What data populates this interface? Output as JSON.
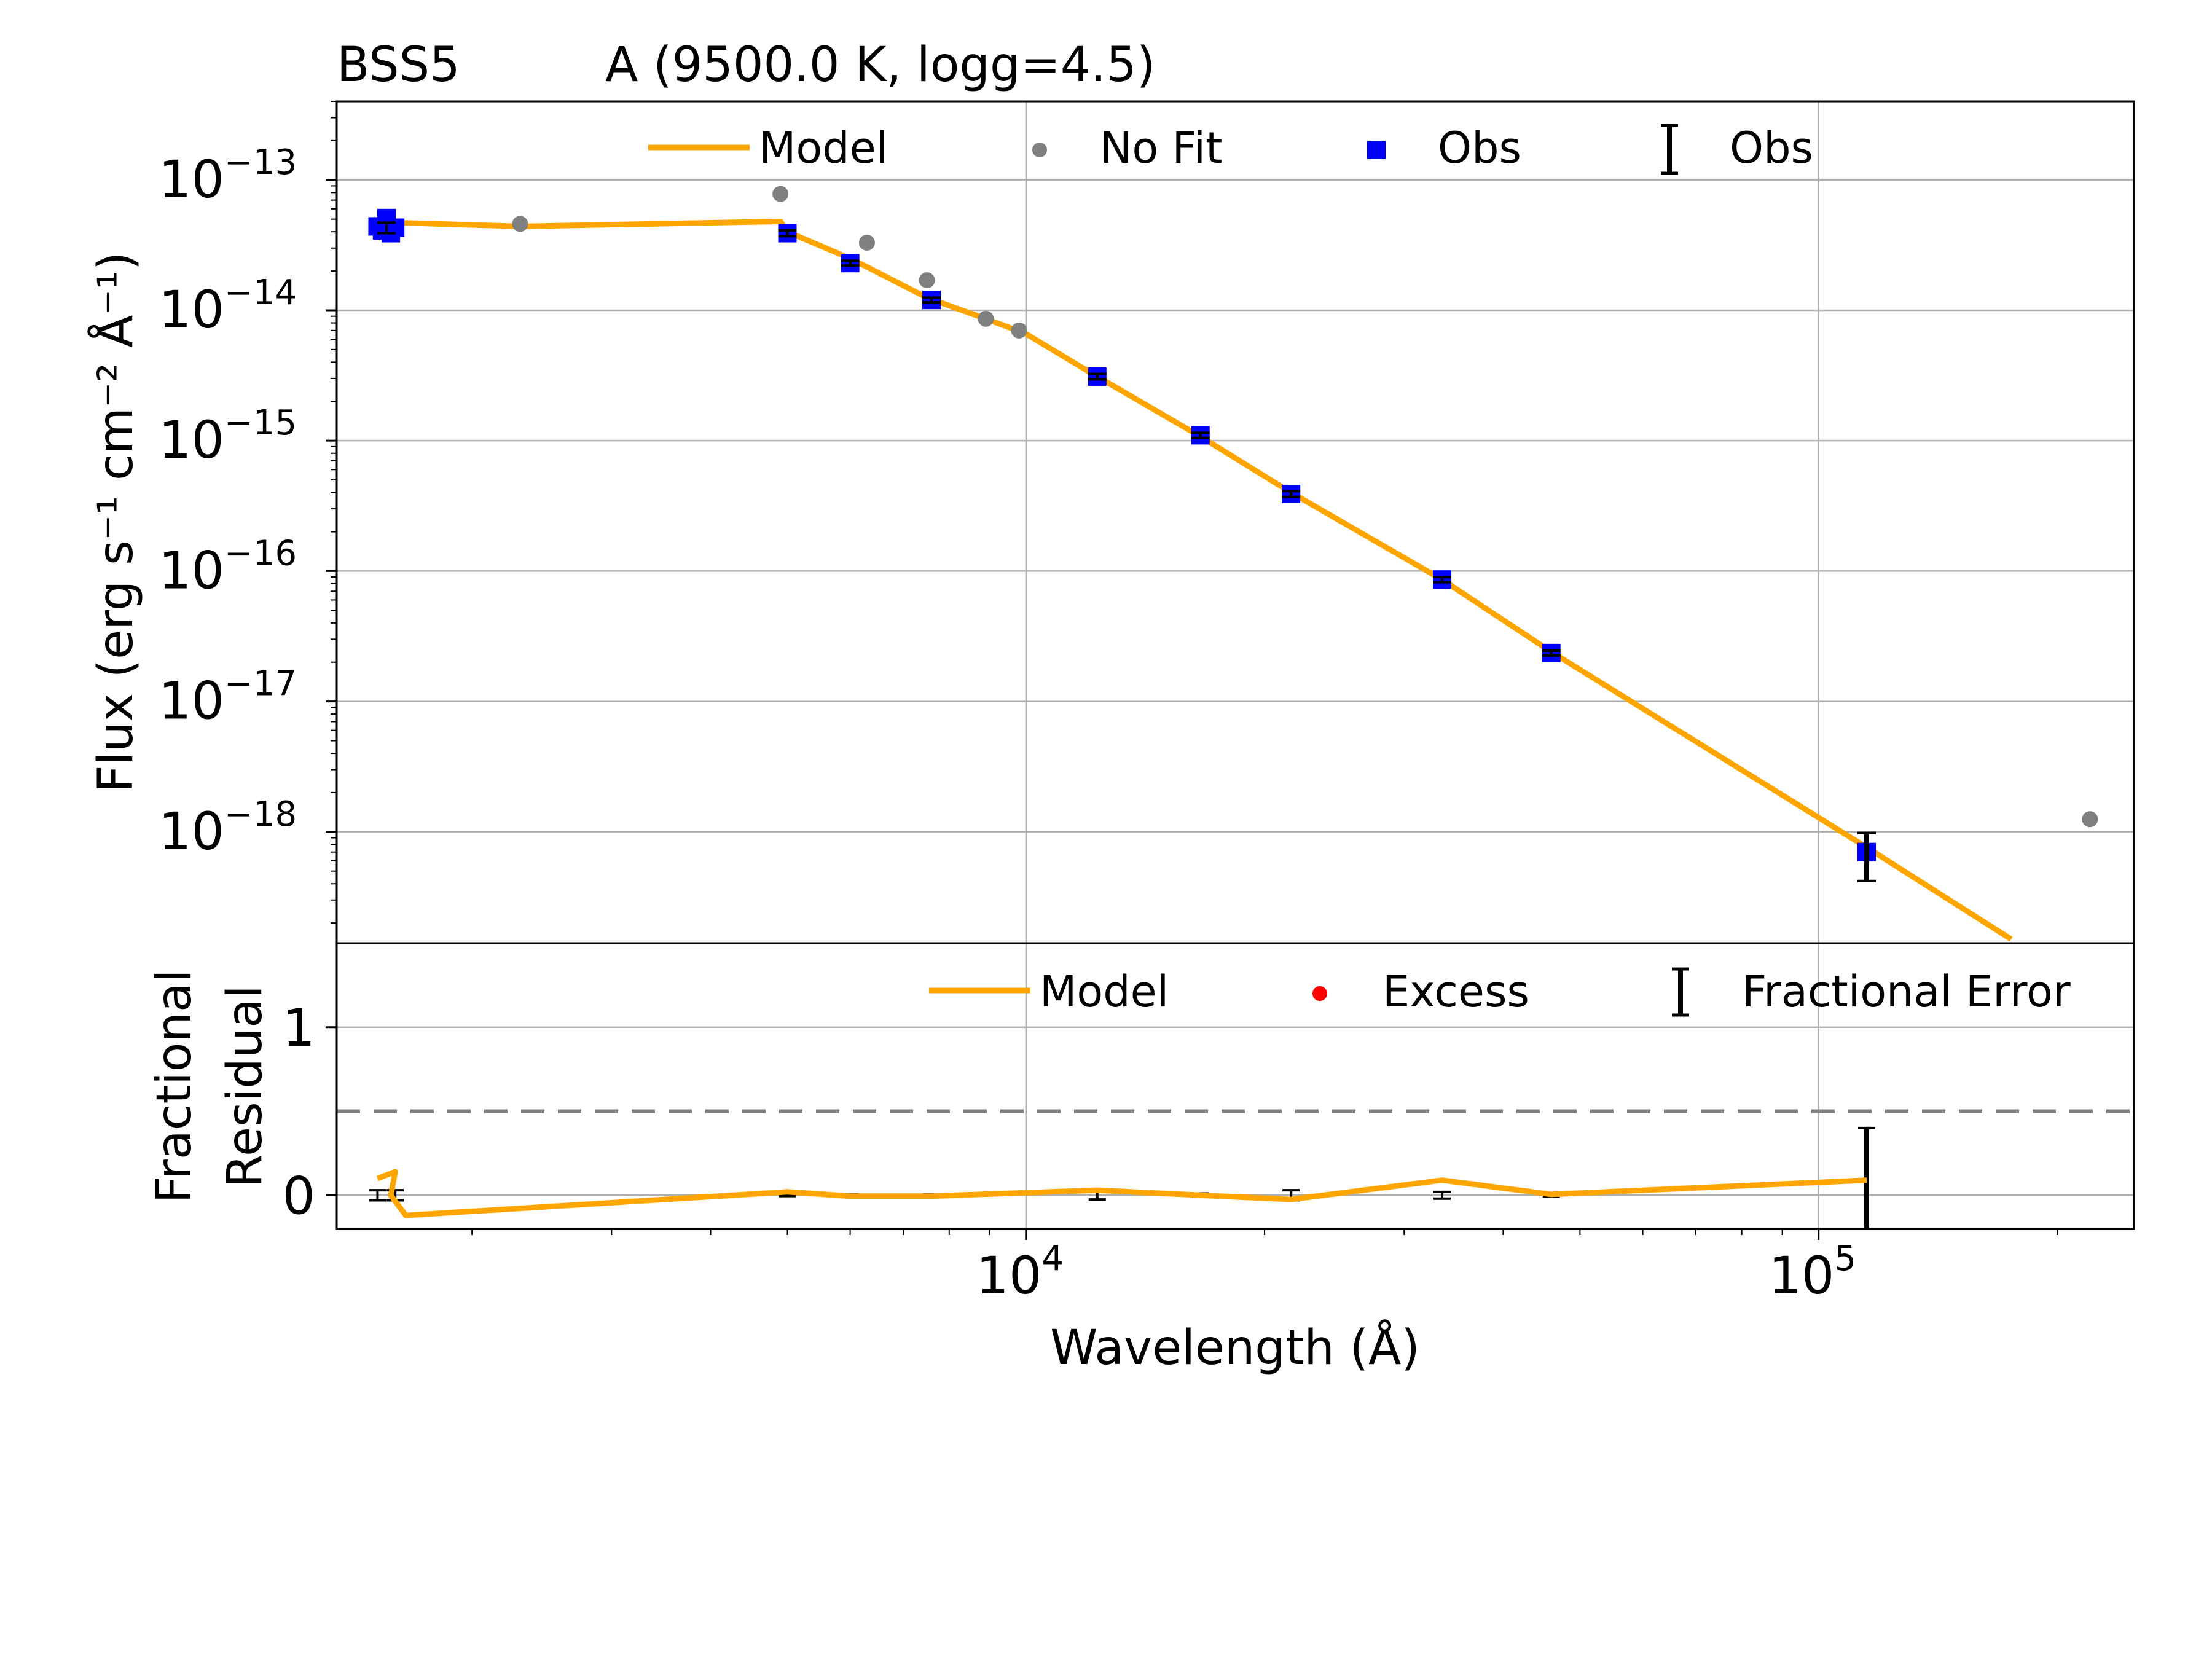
{
  "chart_data": [
    {
      "panel": "sed",
      "type": "scatter",
      "title_left": "BSS5",
      "title_right": "A (9500.0 K, logg=4.5)",
      "xlabel": "Wavelength (Å)",
      "ylabel": "Flux (erg s⁻¹ cm⁻² Å⁻¹)",
      "xscale": "log",
      "yscale": "log",
      "xlim": [
        1350,
        250000
      ],
      "ylim": [
        1.4e-19,
        4e-13
      ],
      "grid": true,
      "legend_position": "top",
      "legend": [
        "Model",
        "No Fit",
        "Obs",
        "Obs"
      ],
      "y_ticks": [
        {
          "base": "10",
          "exp": "−13",
          "value": 1e-13
        },
        {
          "base": "10",
          "exp": "−14",
          "value": 1e-14
        },
        {
          "base": "10",
          "exp": "−15",
          "value": 1e-15
        },
        {
          "base": "10",
          "exp": "−16",
          "value": 1e-16
        },
        {
          "base": "10",
          "exp": "−17",
          "value": 1e-17
        },
        {
          "base": "10",
          "exp": "−18",
          "value": 1e-18
        }
      ],
      "series": [
        {
          "name": "Model",
          "kind": "line",
          "color": "#ffa500",
          "x": [
            1520,
            1560,
            1600,
            2300,
            4900,
            5000,
            6000,
            7500,
            8900,
            10000,
            12300,
            16500,
            21600,
            33500,
            46000,
            115000,
            175000
          ],
          "y": [
            3.8e-14,
            4.6e-14,
            4.7e-14,
            4.4e-14,
            4.8e-14,
            4e-14,
            2.5e-14,
            1.25e-14,
            8.6e-15,
            6.6e-15,
            3.1e-15,
            1.1e-15,
            4e-16,
            8.6e-17,
            2.4e-17,
            7.6e-19,
            1.5e-19
          ]
        },
        {
          "name": "No Fit",
          "kind": "scatter",
          "color": "#808080",
          "x": [
            2300,
            4900,
            6300,
            7500,
            8900,
            9800,
            220000
          ],
          "y": [
            4.6e-14,
            7.8e-14,
            3.3e-14,
            1.7e-14,
            8.6e-15,
            7e-15,
            1.25e-18
          ]
        },
        {
          "name": "Obs",
          "kind": "scatter",
          "color": "#0000ff",
          "x": [
            1520,
            1540,
            1560,
            1580,
            1600,
            5000,
            6000,
            7600,
            12300,
            16600,
            21600,
            33500,
            46000,
            115000
          ],
          "y": [
            4.4e-14,
            4.1e-14,
            5.1e-14,
            3.9e-14,
            4.3e-14,
            3.9e-14,
            2.3e-14,
            1.2e-14,
            3.1e-15,
            1.1e-15,
            3.9e-16,
            8.6e-17,
            2.35e-17,
            7e-19
          ]
        },
        {
          "name": "Obs",
          "kind": "errorbar",
          "color": "#000000",
          "x": [
            1560,
            5000,
            6000,
            7600,
            12300,
            16600,
            21600,
            33500,
            46000,
            115000
          ],
          "y": [
            4.3e-14,
            3.9e-14,
            2.3e-14,
            1.2e-14,
            3.1e-15,
            1.1e-15,
            3.9e-16,
            8.6e-17,
            2.35e-17,
            7e-19
          ],
          "ylo": [
            3.9e-14,
            3.7e-14,
            2.2e-14,
            1.15e-14,
            2.95e-15,
            1.05e-15,
            3.7e-16,
            8.2e-17,
            2.25e-17,
            4.2e-19
          ],
          "yhi": [
            4.7e-14,
            4.1e-14,
            2.4e-14,
            1.25e-14,
            3.25e-15,
            1.15e-15,
            4.1e-16,
            9e-17,
            2.45e-17,
            9.8e-19
          ]
        }
      ]
    },
    {
      "panel": "residual",
      "type": "line",
      "ylabel_line1": "Fractional",
      "ylabel_line2": "Residual",
      "xlabel": "Wavelength (Å)",
      "xscale": "log",
      "xlim": [
        1350,
        250000
      ],
      "ylim": [
        -0.2,
        1.5
      ],
      "grid": true,
      "legend_position": "top-right",
      "legend": [
        "Model",
        "Excess",
        "Fractional Error"
      ],
      "threshold": 0.5,
      "x_ticks": [
        {
          "base": "10",
          "exp": "4",
          "value": 10000
        },
        {
          "base": "10",
          "exp": "5",
          "value": 100000
        }
      ],
      "y_ticks": [
        {
          "label": "1",
          "value": 1
        },
        {
          "label": "0",
          "value": 0
        }
      ],
      "series": [
        {
          "name": "Model",
          "kind": "line",
          "color": "#ffa500",
          "x": [
            1520,
            1600,
            1580,
            1650,
            5000,
            6000,
            7600,
            12300,
            16600,
            21600,
            33500,
            46000,
            115000
          ],
          "y": [
            0.1,
            0.14,
            0.0,
            -0.12,
            0.02,
            -0.005,
            -0.005,
            0.03,
            0.0,
            -0.025,
            0.09,
            0.005,
            0.09
          ]
        },
        {
          "name": "Excess",
          "kind": "scatter",
          "color": "#ff0000",
          "x": [],
          "y": []
        },
        {
          "name": "Fractional Error",
          "kind": "errorbar",
          "color": "#000000",
          "x": [
            1520,
            1600,
            5000,
            6000,
            7600,
            12300,
            16600,
            21600,
            33500,
            46000,
            115000
          ],
          "y": [
            0,
            0,
            0,
            0,
            0,
            0,
            0,
            0,
            0,
            0,
            0
          ],
          "err": [
            0.03,
            0.03,
            0.005,
            0.005,
            0.005,
            0.025,
            0.01,
            0.03,
            0.02,
            0.01,
            0.4
          ]
        }
      ]
    }
  ]
}
